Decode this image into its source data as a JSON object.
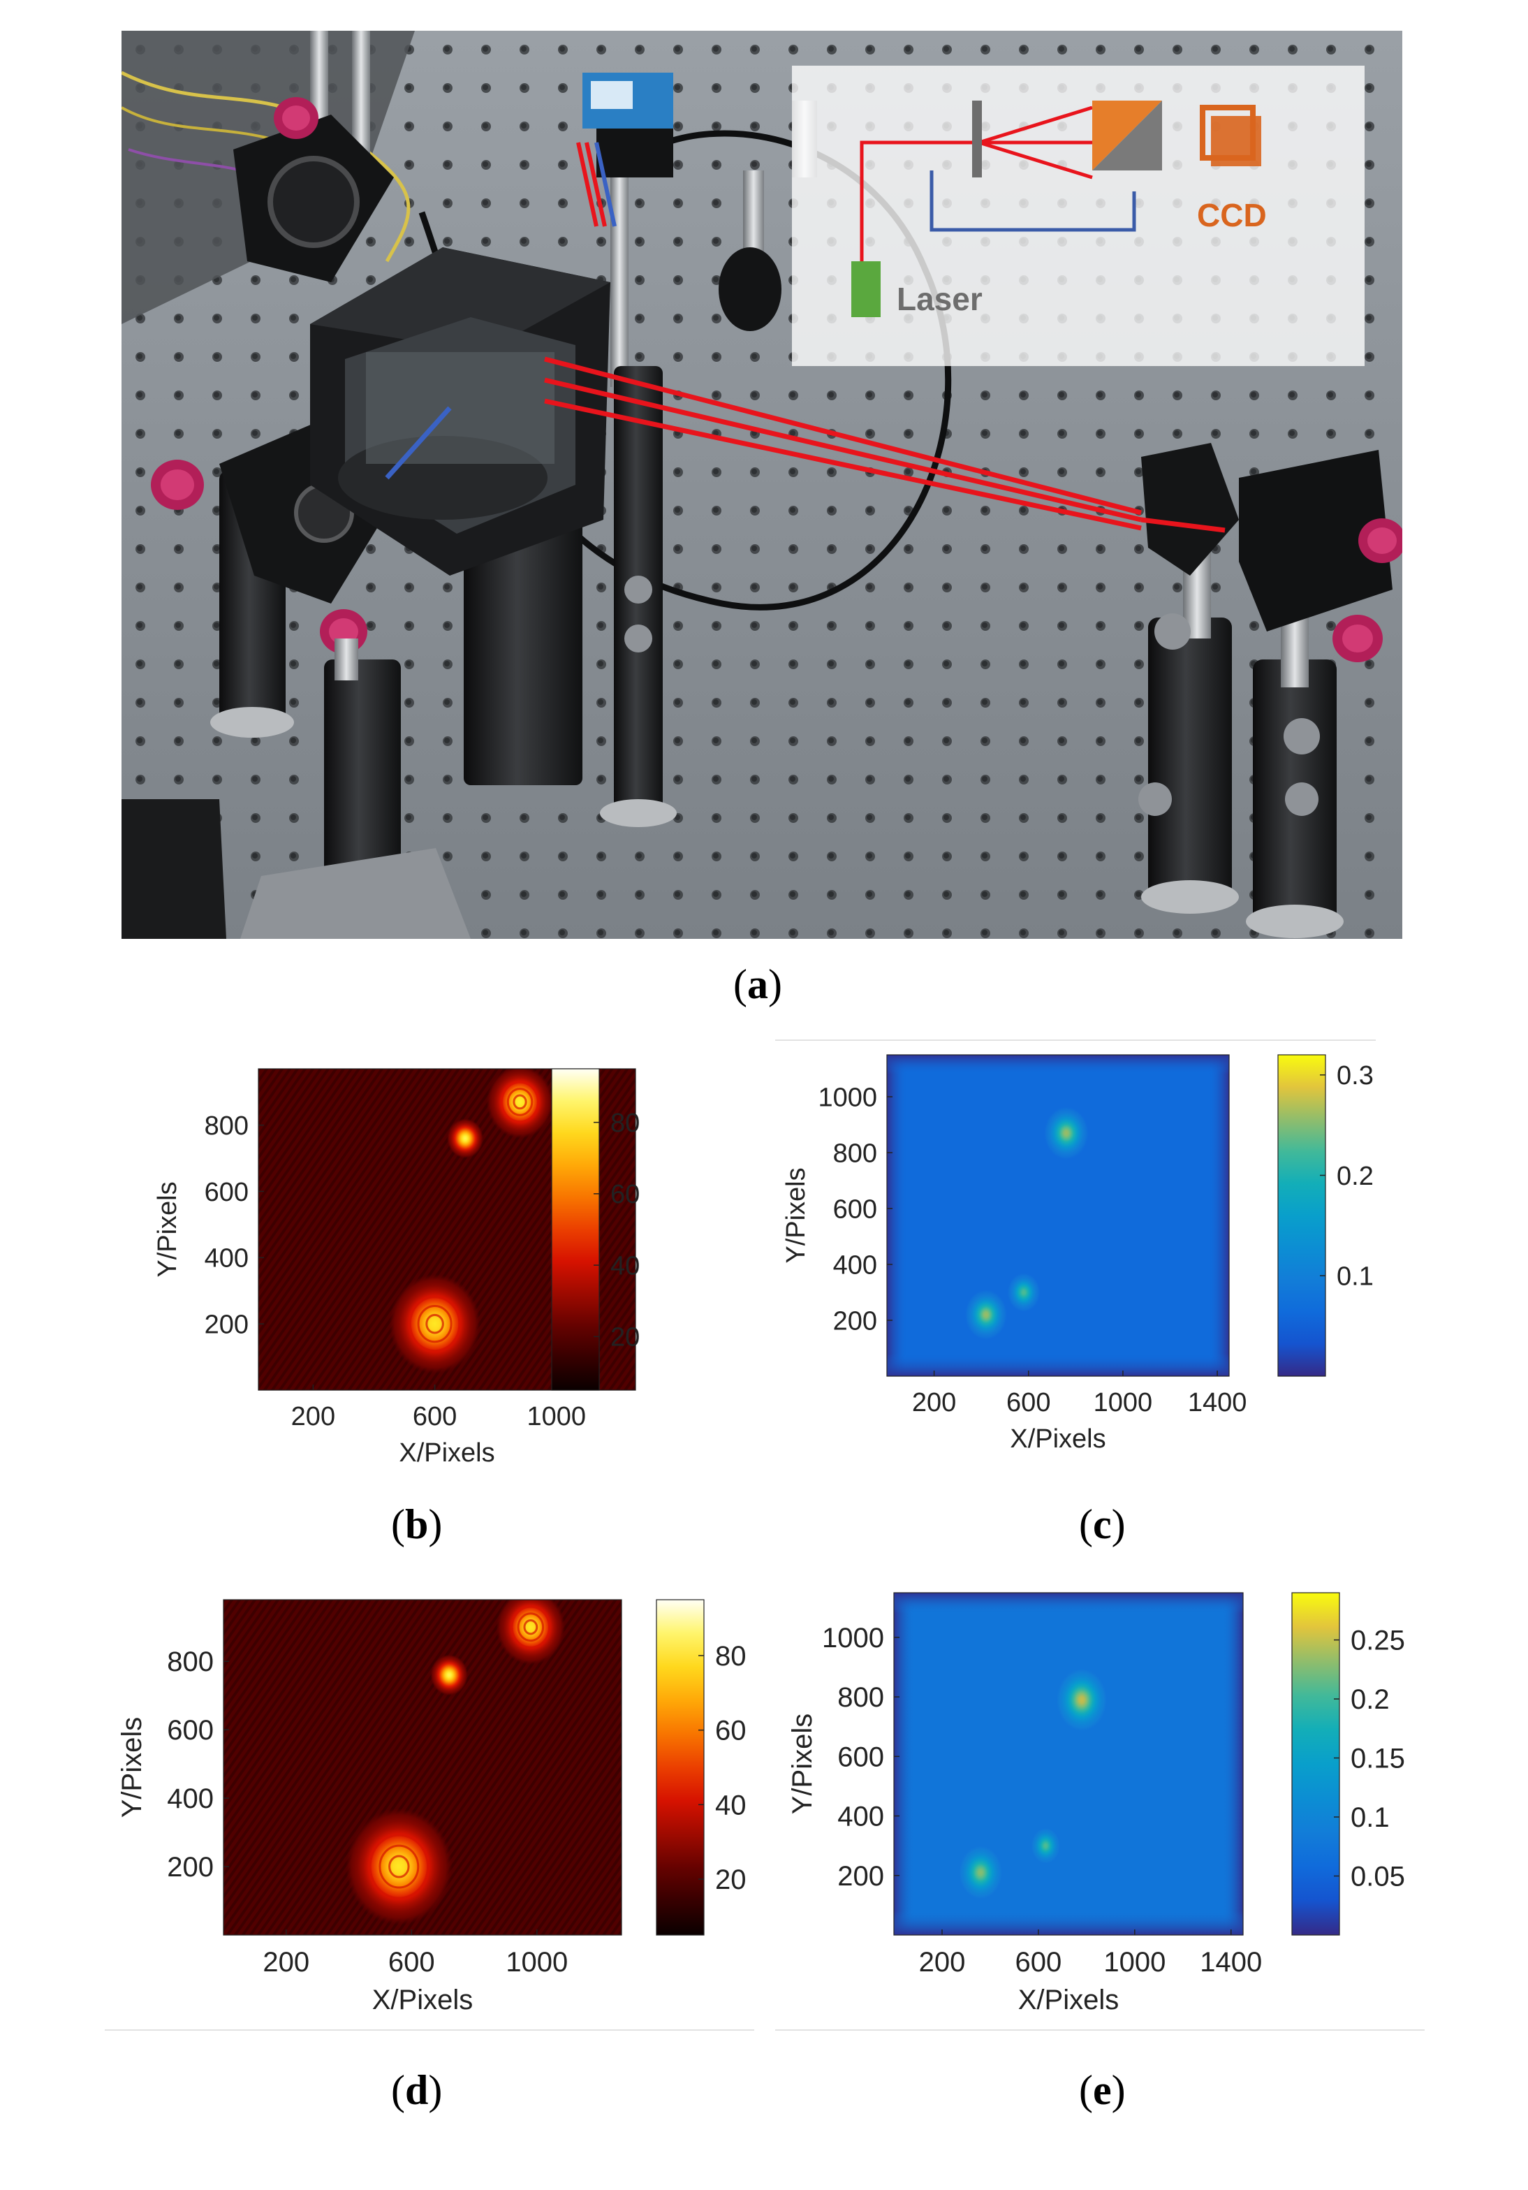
{
  "photo": {
    "inset_labels": {
      "laser": "Laser",
      "ccd": "CCD"
    },
    "colors": {
      "beam": "#e8141c",
      "return_path": "#3a5ba8",
      "laser": "#5aa83e",
      "ccd": "#d9651e"
    }
  },
  "captions": {
    "a": {
      "open": "(",
      "label": "a",
      "close": ")"
    },
    "b": {
      "open": "(",
      "label": "b",
      "close": ")"
    },
    "c": {
      "open": "(",
      "label": "c",
      "close": ")"
    },
    "d": {
      "open": "(",
      "label": "d",
      "close": ")"
    },
    "e": {
      "open": "(",
      "label": "e",
      "close": ")"
    }
  },
  "chart_data": [
    {
      "id": "b",
      "type": "heatmap",
      "colormap": "hot",
      "xlabel": "X/Pixels",
      "ylabel": "Y/Pixels",
      "xticks": [
        200,
        600,
        1000
      ],
      "yticks": [
        200,
        400,
        600,
        800
      ],
      "xlim": [
        20,
        1260
      ],
      "ylim": [
        0,
        970
      ],
      "clim": [
        5,
        95
      ],
      "colorbar_ticks": [
        20,
        40,
        60,
        80
      ],
      "spots": [
        {
          "x": 600,
          "y": 200,
          "peak": 80,
          "radius": 150,
          "rings": true
        },
        {
          "x": 700,
          "y": 760,
          "peak": 85,
          "radius": 60,
          "rings": false
        },
        {
          "x": 880,
          "y": 870,
          "peak": 82,
          "radius": 110,
          "rings": true
        }
      ]
    },
    {
      "id": "c",
      "type": "heatmap",
      "colormap": "parula",
      "xlabel": "X/Pixels",
      "ylabel": "Y/Pixels",
      "xticks": [
        200,
        600,
        1000,
        1400
      ],
      "yticks": [
        200,
        400,
        600,
        800,
        1000
      ],
      "xlim": [
        0,
        1450
      ],
      "ylim": [
        0,
        1150
      ],
      "clim": [
        0,
        0.32
      ],
      "colorbar_ticks": [
        0.1,
        0.2,
        0.3
      ],
      "background": 0.065,
      "spots": [
        {
          "x": 420,
          "y": 220,
          "peak": 0.26,
          "radius": 90
        },
        {
          "x": 580,
          "y": 300,
          "peak": 0.23,
          "radius": 70
        },
        {
          "x": 760,
          "y": 870,
          "peak": 0.26,
          "radius": 95
        }
      ]
    },
    {
      "id": "d",
      "type": "heatmap",
      "colormap": "hot",
      "xlabel": "X/Pixels",
      "ylabel": "Y/Pixels",
      "xticks": [
        200,
        600,
        1000
      ],
      "yticks": [
        200,
        400,
        600,
        800
      ],
      "xlim": [
        0,
        1270
      ],
      "ylim": [
        0,
        980
      ],
      "clim": [
        5,
        95
      ],
      "colorbar_ticks": [
        20,
        40,
        60,
        80
      ],
      "spots": [
        {
          "x": 560,
          "y": 200,
          "peak": 80,
          "radius": 170,
          "rings": true
        },
        {
          "x": 720,
          "y": 760,
          "peak": 85,
          "radius": 60,
          "rings": false
        },
        {
          "x": 980,
          "y": 900,
          "peak": 80,
          "radius": 110,
          "rings": true
        }
      ]
    },
    {
      "id": "e",
      "type": "heatmap",
      "colormap": "parula",
      "xlabel": "X/Pixels",
      "ylabel": "Y/Pixels",
      "xticks": [
        200,
        600,
        1000,
        1400
      ],
      "yticks": [
        200,
        400,
        600,
        800,
        1000
      ],
      "xlim": [
        0,
        1450
      ],
      "ylim": [
        0,
        1150
      ],
      "clim": [
        0,
        0.29
      ],
      "colorbar_ticks": [
        0.05,
        0.1,
        0.15,
        0.2,
        0.25
      ],
      "background": 0.075,
      "spots": [
        {
          "x": 360,
          "y": 210,
          "peak": 0.23,
          "radius": 90
        },
        {
          "x": 630,
          "y": 300,
          "peak": 0.21,
          "radius": 60
        },
        {
          "x": 780,
          "y": 790,
          "peak": 0.25,
          "radius": 105
        }
      ]
    }
  ]
}
